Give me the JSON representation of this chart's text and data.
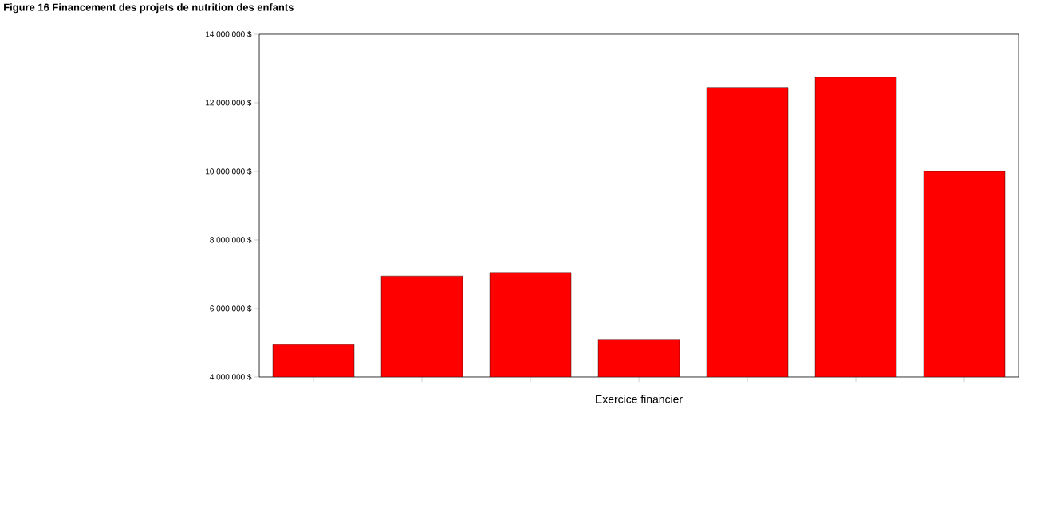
{
  "chart_data": {
    "type": "bar",
    "title": "Figure 16 Financement des projets de nutrition des enfants",
    "xlabel": "Exercice financier",
    "categories": [
      null,
      null,
      null,
      null,
      null,
      null,
      null
    ],
    "values": [
      4950000,
      6950000,
      7050000,
      5100000,
      12450000,
      12750000,
      10000000
    ],
    "color": "#ff0000",
    "ylim": [
      4000000,
      14000000
    ],
    "yticks": [
      {
        "value": 4000000,
        "label": "4 000 000 $"
      },
      {
        "value": 6000000,
        "label": "6 000 000 $"
      },
      {
        "value": 8000000,
        "label": "8 000 000 $"
      },
      {
        "value": 10000000,
        "label": "10 000 000 $"
      },
      {
        "value": 12000000,
        "label": "12 000 000 $"
      },
      {
        "value": 14000000,
        "label": "14 000 000 $"
      }
    ],
    "grid": false
  }
}
